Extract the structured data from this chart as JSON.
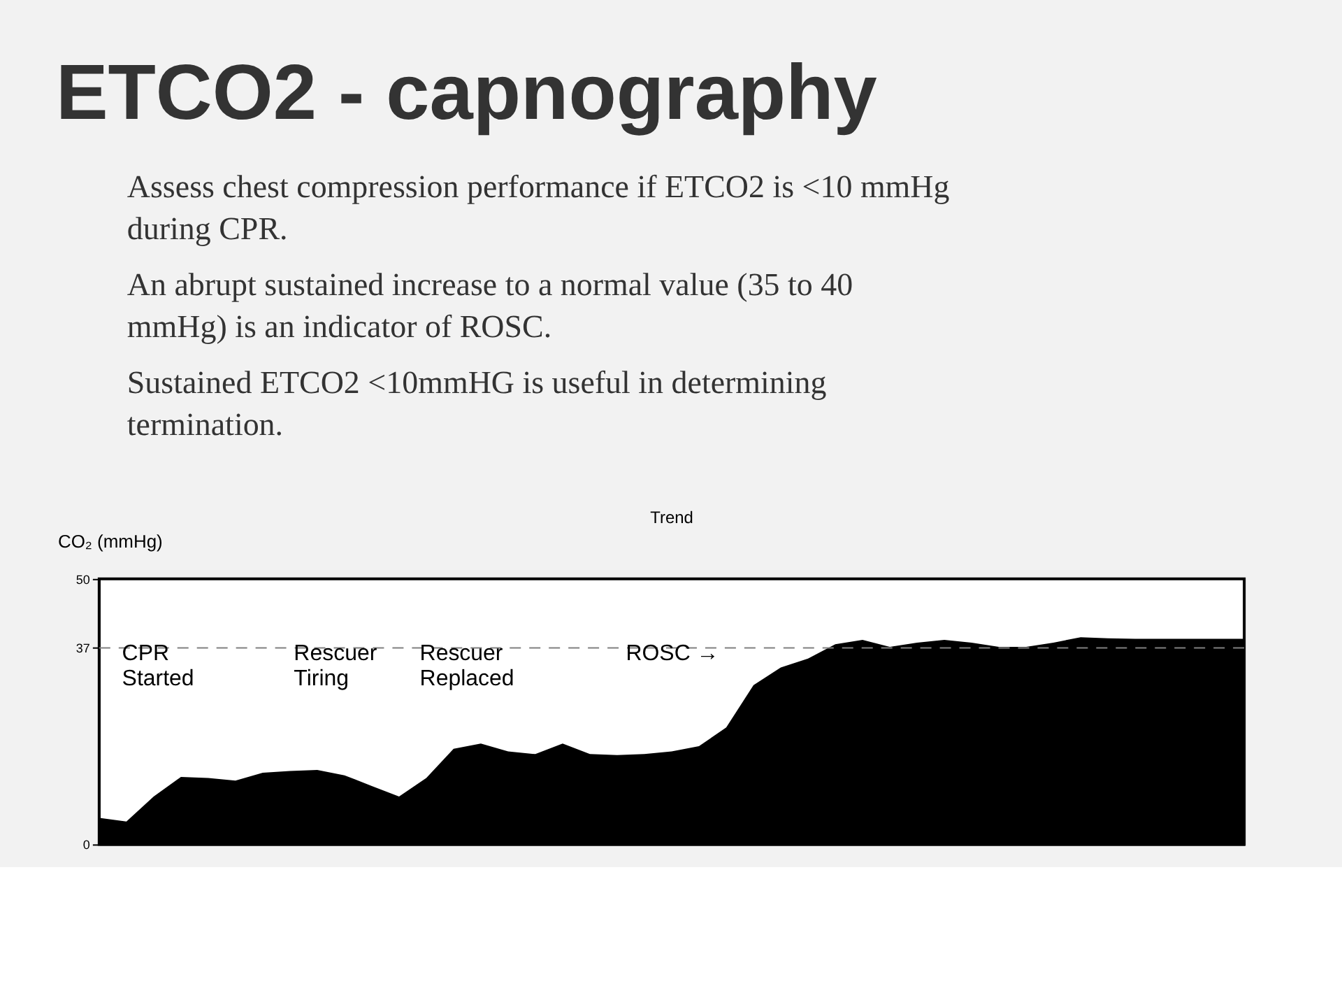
{
  "chart_data": {
    "type": "area",
    "title": "ETCO2 - capnography",
    "subtitle": "Trend",
    "ylabel": "CO₂ (mmHg)",
    "categories": [
      null,
      null,
      null,
      null,
      null,
      null,
      null,
      null,
      null,
      null,
      null,
      null,
      null,
      null,
      null,
      null,
      null,
      null,
      null,
      null,
      null,
      null,
      null,
      null,
      null,
      null,
      null,
      null,
      null,
      null,
      null,
      null,
      null,
      null,
      null,
      null,
      null,
      null,
      null,
      null,
      null,
      null,
      null
    ],
    "series": [
      {
        "color": "#000000",
        "values": [
          5,
          4.3,
          9,
          12.7,
          12.5,
          12,
          13.5,
          13.8,
          14,
          13,
          11,
          9,
          12.5,
          18,
          19,
          17.5,
          17,
          19,
          17,
          16.8,
          17,
          17.5,
          18.5,
          22,
          30,
          33.3,
          35,
          37.7,
          38.5,
          37.2,
          38,
          38.5,
          38,
          37.2,
          37.2,
          38,
          39,
          38.8,
          38.7,
          38.7,
          38.7,
          38.7,
          38.7
        ]
      }
    ],
    "ylim": [
      0,
      50
    ],
    "yticks": [
      0,
      37,
      50
    ],
    "grid": false,
    "tick_labels": "y",
    "ref_lines": [
      {
        "axis": "y",
        "value": 37,
        "color": "#808080",
        "line_style": "dashed"
      }
    ],
    "annotations": [
      "Assess chest compression performance if ETCO2 is <10 mmHg during CPR.",
      "An abrupt sustained increase to a normal value (35 to 40 mmHg) is an indicator of ROSC.",
      "Sustained ETCO2 <10mmHG is useful in determining termination.",
      "CPR\nStarted",
      "Rescuer\nTiring",
      "Rescuer\nReplaced",
      "ROSC →"
    ]
  }
}
